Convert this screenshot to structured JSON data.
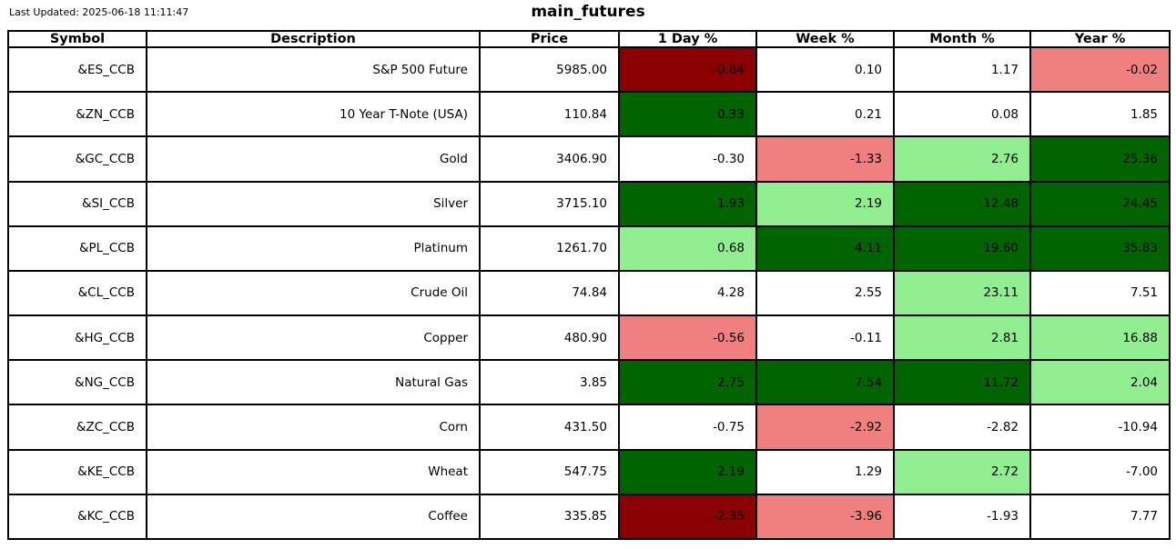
{
  "colors": {
    "dark_red": "#8b0000",
    "light_red": "#f08080",
    "dark_green": "#006400",
    "light_green": "#90ee90",
    "white": "#ffffff",
    "border": "#000000",
    "text": "#000000",
    "background": "#ffffff"
  },
  "header": {
    "last_updated": "Last Updated: 2025-06-18 11:11:47",
    "title": "main_futures"
  },
  "chart_data": {
    "type": "table",
    "title": "main_futures",
    "columns": [
      "Symbol",
      "Description",
      "Price",
      "1 Day %",
      "Week %",
      "Month %",
      "Year %"
    ],
    "rows": [
      {
        "symbol": "&ES_CCB",
        "description": "S&P 500 Future",
        "price": "5985.00",
        "changes": [
          "-0.84",
          "0.10",
          "1.17",
          "-0.02"
        ],
        "cell_colors": [
          "dark_red",
          "white",
          "white",
          "light_red"
        ]
      },
      {
        "symbol": "&ZN_CCB",
        "description": "10 Year T-Note (USA)",
        "price": "110.84",
        "changes": [
          "0.33",
          "0.21",
          "0.08",
          "1.85"
        ],
        "cell_colors": [
          "dark_green",
          "white",
          "white",
          "white"
        ]
      },
      {
        "symbol": "&GC_CCB",
        "description": "Gold",
        "price": "3406.90",
        "changes": [
          "-0.30",
          "-1.33",
          "2.76",
          "25.36"
        ],
        "cell_colors": [
          "white",
          "light_red",
          "light_green",
          "dark_green"
        ]
      },
      {
        "symbol": "&SI_CCB",
        "description": "Silver",
        "price": "3715.10",
        "changes": [
          "1.93",
          "2.19",
          "12.48",
          "24.45"
        ],
        "cell_colors": [
          "dark_green",
          "light_green",
          "dark_green",
          "dark_green"
        ]
      },
      {
        "symbol": "&PL_CCB",
        "description": "Platinum",
        "price": "1261.70",
        "changes": [
          "0.68",
          "4.11",
          "19.60",
          "35.83"
        ],
        "cell_colors": [
          "light_green",
          "dark_green",
          "dark_green",
          "dark_green"
        ]
      },
      {
        "symbol": "&CL_CCB",
        "description": "Crude Oil",
        "price": "74.84",
        "changes": [
          "4.28",
          "2.55",
          "23.11",
          "7.51"
        ],
        "cell_colors": [
          "white",
          "white",
          "light_green",
          "white"
        ]
      },
      {
        "symbol": "&HG_CCB",
        "description": "Copper",
        "price": "480.90",
        "changes": [
          "-0.56",
          "-0.11",
          "2.81",
          "16.88"
        ],
        "cell_colors": [
          "light_red",
          "white",
          "light_green",
          "light_green"
        ]
      },
      {
        "symbol": "&NG_CCB",
        "description": "Natural Gas",
        "price": "3.85",
        "changes": [
          "2.75",
          "7.54",
          "11.72",
          "2.04"
        ],
        "cell_colors": [
          "dark_green",
          "dark_green",
          "dark_green",
          "light_green"
        ]
      },
      {
        "symbol": "&ZC_CCB",
        "description": "Corn",
        "price": "431.50",
        "changes": [
          "-0.75",
          "-2.92",
          "-2.82",
          "-10.94"
        ],
        "cell_colors": [
          "white",
          "light_red",
          "white",
          "white"
        ]
      },
      {
        "symbol": "&KE_CCB",
        "description": "Wheat",
        "price": "547.75",
        "changes": [
          "2.19",
          "1.29",
          "2.72",
          "-7.00"
        ],
        "cell_colors": [
          "dark_green",
          "white",
          "light_green",
          "white"
        ]
      },
      {
        "symbol": "&KC_CCB",
        "description": "Coffee",
        "price": "335.85",
        "changes": [
          "-2.35",
          "-3.96",
          "-1.93",
          "7.77"
        ],
        "cell_colors": [
          "dark_red",
          "light_red",
          "white",
          "white"
        ]
      }
    ]
  }
}
